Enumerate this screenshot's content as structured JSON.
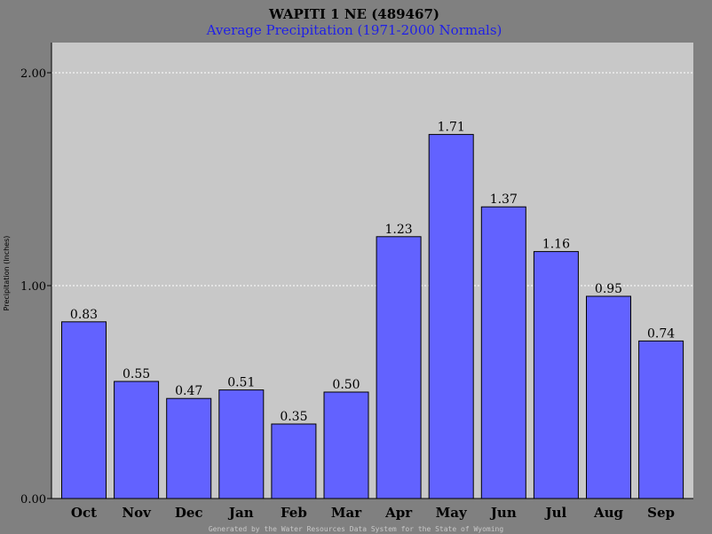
{
  "chart_data": {
    "type": "bar",
    "title": "WAPITI 1 NE (489467)",
    "subtitle": "Average Precipitation (1971-2000 Normals)",
    "ylabel": "Precipitation (Inches)",
    "xlabel": "",
    "categories": [
      "Oct",
      "Nov",
      "Dec",
      "Jan",
      "Feb",
      "Mar",
      "Apr",
      "May",
      "Jun",
      "Jul",
      "Aug",
      "Sep"
    ],
    "values": [
      0.83,
      0.55,
      0.47,
      0.51,
      0.35,
      0.5,
      1.23,
      1.71,
      1.37,
      1.16,
      0.95,
      0.74
    ],
    "value_labels": [
      "0.83",
      "0.55",
      "0.47",
      "0.51",
      "0.35",
      "0.50",
      "1.23",
      "1.71",
      "1.37",
      "1.16",
      "0.95",
      "0.74"
    ],
    "ylim": [
      0,
      2.0
    ],
    "yticks": [
      0,
      1,
      2
    ],
    "ytick_labels": [
      "0.00",
      "1.00",
      "2.00"
    ],
    "grid": true,
    "colors": {
      "bar": "#6262ff",
      "plot_bg": "#c8c8c8",
      "page_bg": "#808080",
      "subtitle": "#1f1fe8"
    }
  },
  "footer": "Generated by the Water Resources Data System for the State of Wyoming"
}
